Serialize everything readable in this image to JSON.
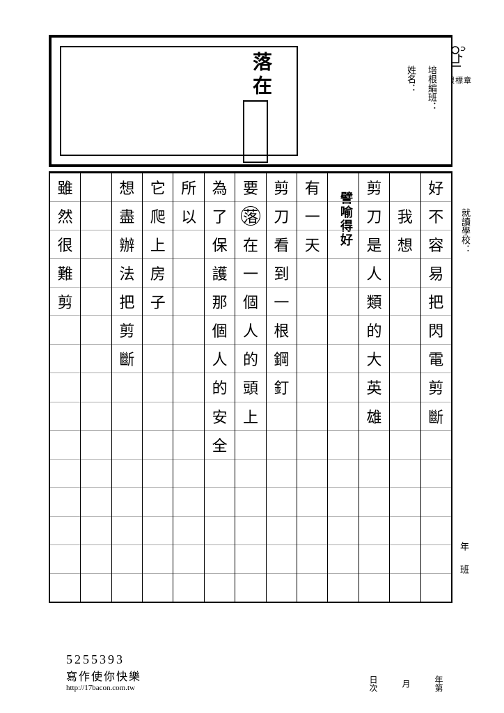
{
  "stamp_label": "培根標章",
  "title_prefix": "落在",
  "header": {
    "class_label": "培根編班：",
    "name_label": "姓名：",
    "school_label": "就讀學校：",
    "year": "年",
    "ban": "班"
  },
  "annotation": "譬喻得好",
  "columns": [
    [
      "好",
      "不",
      "容",
      "易",
      "把",
      "閃",
      "電",
      "剪",
      "斷",
      "",
      ""
    ],
    [
      "",
      "我",
      "想",
      "",
      "",
      "",
      "",
      "",
      "",
      "",
      ""
    ],
    [
      "剪",
      "刀",
      "是",
      "人",
      "類",
      "的",
      "大",
      "英",
      "雄",
      "",
      ""
    ],
    [
      "",
      "",
      "",
      "",
      "",
      "",
      "",
      "",
      "",
      "",
      ""
    ],
    [
      "有",
      "一",
      "天",
      "",
      "",
      "",
      "",
      "",
      "",
      "",
      ""
    ],
    [
      "剪",
      "刀",
      "看",
      "到",
      "一",
      "根",
      "鋼",
      "釘",
      "",
      "",
      ""
    ],
    [
      "要",
      "落",
      "在",
      "一",
      "個",
      "人",
      "的",
      "頭",
      "上",
      "",
      ""
    ],
    [
      "為",
      "了",
      "保",
      "護",
      "那",
      "個",
      "人",
      "的",
      "安",
      "全",
      ""
    ],
    [
      "所",
      "以",
      "",
      "",
      "",
      "",
      "",
      "",
      "",
      "",
      ""
    ],
    [
      "它",
      "爬",
      "上",
      "房",
      "子",
      "",
      "",
      "",
      "",
      "",
      ""
    ],
    [
      "想",
      "盡",
      "辦",
      "法",
      "把",
      "剪",
      "斷",
      "",
      "",
      "",
      ""
    ],
    [
      "",
      "",
      "",
      "",
      "",
      "",
      "",
      "",
      "",
      "",
      ""
    ],
    [
      "雖",
      "然",
      "很",
      "難",
      "剪",
      "",
      "",
      "",
      "",
      "",
      ""
    ]
  ],
  "circled": {
    "col": 6,
    "row": 1
  },
  "footer": {
    "number": "5255393",
    "slogan": "寫作使你快樂",
    "url": "http://17bacon.com.tw"
  },
  "date": {
    "a": "日次",
    "b": "月",
    "c": "年第"
  }
}
